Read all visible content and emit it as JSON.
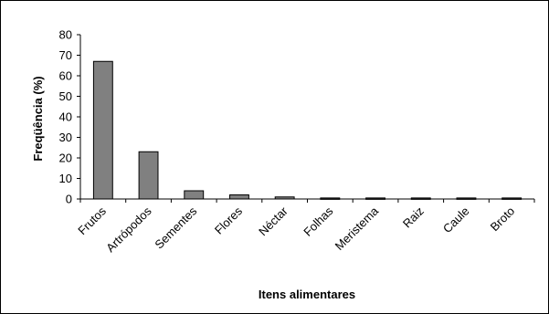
{
  "chart_data": {
    "type": "bar",
    "title": "",
    "xlabel": "Itens alimentares",
    "ylabel": "Freqüência (%)",
    "ylim": [
      0,
      80
    ],
    "yticks": [
      0,
      10,
      20,
      30,
      40,
      50,
      60,
      70,
      80
    ],
    "categories": [
      "Frutos",
      "Artrópodos",
      "Sementes",
      "Flores",
      "Néctar",
      "Folhas",
      "Meristema",
      "Raiz",
      "Caule",
      "Broto"
    ],
    "values": [
      67,
      23,
      4,
      2,
      1,
      0.5,
      0.5,
      0.5,
      0.5,
      0.5
    ],
    "grid": false,
    "legend": "none",
    "colors": {
      "bar_fill": "#808080",
      "bar_stroke": "#000000",
      "axis": "#000000"
    }
  }
}
